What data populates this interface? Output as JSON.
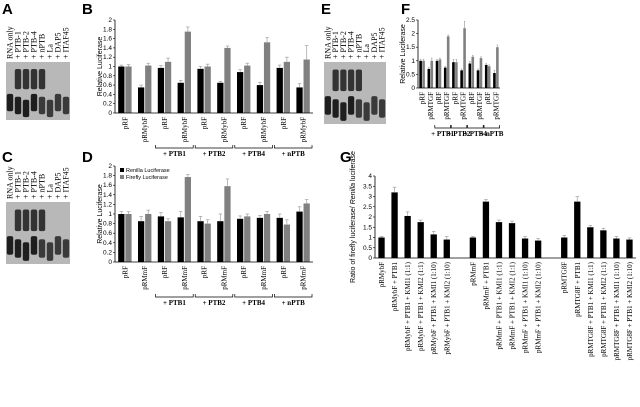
{
  "gels": [
    {
      "label": "A",
      "lanes": [
        "RNA only",
        "+ PTB-1",
        "+ PTB-2",
        "+ PTB-4",
        "+ nPTB",
        "+ La",
        "+ DAP5",
        "+ ITAF45"
      ]
    },
    {
      "label": "C",
      "lanes": [
        "RNA only",
        "+ PTB-1",
        "+ PTB-2",
        "+ PTB-4",
        "+ nPTB",
        "+ La",
        "+ DAP5",
        "+ ITAF45"
      ]
    },
    {
      "label": "E",
      "lanes": [
        "RNA only",
        "+ PTB-1",
        "+ PTB-2",
        "+ PTB-4",
        "+ nPTB",
        "+ La",
        "+ DAP5",
        "+ ITAF45"
      ]
    }
  ],
  "chart_data": [
    {
      "type": "bar",
      "label": "B",
      "ylabel": [
        "Relative Luciferase"
      ],
      "categories": [
        "pRF",
        "pRMybF",
        "pRF",
        "pRMybF",
        "pRF",
        "pRMybF",
        "pRF",
        "pRMybF",
        "pRF",
        "pRMybF"
      ],
      "group_labels": [
        "+ PTB1",
        "+ PTB2",
        "+ PTB4",
        "+ nPTB"
      ],
      "series": [
        {
          "color": "#000000",
          "values": [
            1,
            0.55,
            0.97,
            0.65,
            0.95,
            0.65,
            0.88,
            0.6,
            0.97,
            0.55
          ],
          "errors": [
            0.03,
            0.05,
            0.05,
            0.05,
            0.05,
            0.03,
            0.05,
            0.06,
            0.06,
            0.08
          ]
        },
        {
          "color": "#808080",
          "values": [
            1,
            1.02,
            1.1,
            1.75,
            1.0,
            1.4,
            1.02,
            1.52,
            1.1,
            1.15
          ],
          "errors": [
            0.04,
            0.05,
            0.08,
            0.1,
            0.05,
            0.04,
            0.05,
            0.1,
            0.1,
            0.3
          ]
        }
      ],
      "ylim": [
        0,
        2
      ],
      "yticks": [
        0,
        0.2,
        0.4,
        0.6,
        0.8,
        1,
        1.2,
        1.4,
        1.6,
        1.8,
        2
      ]
    },
    {
      "type": "bar",
      "label": "D",
      "ylabel": [
        "Relative Luciferase"
      ],
      "categories": [
        "pRF",
        "pRMmF",
        "pRF",
        "pRMmF",
        "pRF",
        "pRMmF",
        "pRF",
        "pRMmF",
        "pRF",
        "pRMmF"
      ],
      "group_labels": [
        "+ PTB1",
        "+ PTB2",
        "+ PTB4",
        "+ nPTB"
      ],
      "legend": "upper left",
      "series": [
        {
          "name": "Renilla Luciferase",
          "color": "#000000",
          "values": [
            1,
            0.85,
            0.95,
            0.93,
            0.85,
            0.85,
            0.9,
            0.92,
            0.92,
            1.05
          ],
          "errors": [
            0.05,
            0.1,
            0.08,
            0.12,
            0.1,
            0.15,
            0.06,
            0.05,
            0.08,
            0.1
          ]
        },
        {
          "name": "Firefly Luciferase",
          "color": "#808080",
          "values": [
            1,
            1.0,
            0.85,
            1.77,
            0.8,
            1.58,
            0.95,
            1.0,
            0.78,
            1.22
          ],
          "errors": [
            0.05,
            0.08,
            0.05,
            0.05,
            0.08,
            0.15,
            0.05,
            0.05,
            0.1,
            0.08
          ]
        }
      ],
      "ylim": [
        0,
        2
      ],
      "yticks": [
        0,
        0.2,
        0.4,
        0.6,
        0.8,
        1,
        1.2,
        1.4,
        1.6,
        1.8,
        2
      ]
    },
    {
      "type": "bar",
      "label": "F",
      "ylabel": [
        "Relative Luciferase"
      ],
      "categories": [
        "pRF",
        "pRMTGF",
        "pRF",
        "pRMTGF",
        "pRF",
        "pRMTGF",
        "pRF",
        "pRMTGF",
        "pRF",
        "pRMTGF"
      ],
      "group_labels": [
        "+ PTB1",
        "+ PTB2",
        "+ PTB4",
        "+ nPTB"
      ],
      "series": [
        {
          "color": "#000000",
          "values": [
            1,
            0.7,
            1.0,
            0.75,
            0.95,
            0.65,
            0.9,
            0.65,
            0.85,
            0.55
          ],
          "errors": [
            0.05,
            0.05,
            0.05,
            0.05,
            0.1,
            0.05,
            0.08,
            0.05,
            0.05,
            0.1
          ]
        },
        {
          "color": "#808080",
          "values": [
            1,
            1.0,
            1.05,
            1.9,
            0.95,
            2.2,
            1.15,
            1.1,
            0.8,
            1.5
          ],
          "errors": [
            0.05,
            0.1,
            0.05,
            0.05,
            0.1,
            0.25,
            0.05,
            0.05,
            0.05,
            0.08
          ]
        }
      ],
      "ylim": [
        0,
        2.5
      ],
      "yticks": [
        0,
        0.5,
        1,
        1.5,
        2,
        2.5
      ]
    },
    {
      "type": "bar",
      "label": "G",
      "ylabel": [
        "Ratio of firefly luciferase/ ",
        "Renilla",
        " luciferase"
      ],
      "categories": [
        "pRMybF",
        "pRMybF + PTB1",
        "pRMybF + PTB1 + KMI1 (1:1)",
        "pRMybF + PTB1 + KMI2 (1:1)",
        "pRMybF + PTB1 + KMI1 (1:10)",
        "pRMybF + PTB1 + KMI2 (1:10)",
        "pRMmF",
        "pRMmF + PTB1",
        "pRMmF + PTB1 + KMI1 (1:1)",
        "pRMmF + PTB1 + KMI2 (1:1)",
        "pRMmF + PTB1 + KMI1 (1:10)",
        "pRMmF + PTB1 + KMI2 (1:10)",
        "pRMTG8F",
        "pRMTG8F + PTB1",
        "pRMTG8F + PTB1 + KMI1 (1:1)",
        "pRMTG8F + PTB1 + KMI2 (1:1)",
        "pRMTG8F + PTB1 + KMI1 (1:10)",
        "pRMTG8F + PTB1 + KMI2 (1:10)"
      ],
      "series": [
        {
          "color": "#000000",
          "values": [
            1,
            3.2,
            2.05,
            1.75,
            1.15,
            0.9,
            1,
            2.75,
            1.75,
            1.7,
            0.95,
            0.85,
            1,
            2.75,
            1.5,
            1.35,
            0.95,
            0.9
          ],
          "errors": [
            0.05,
            0.25,
            0.2,
            0.1,
            0.15,
            0.15,
            0.05,
            0.1,
            0.1,
            0.1,
            0.1,
            0.1,
            0.1,
            0.25,
            0.08,
            0.1,
            0.1,
            0.08
          ]
        }
      ],
      "ylim": [
        0,
        4
      ],
      "yticks": [
        0,
        0.5,
        1,
        1.5,
        2,
        2.5,
        3,
        3.5,
        4
      ]
    }
  ]
}
